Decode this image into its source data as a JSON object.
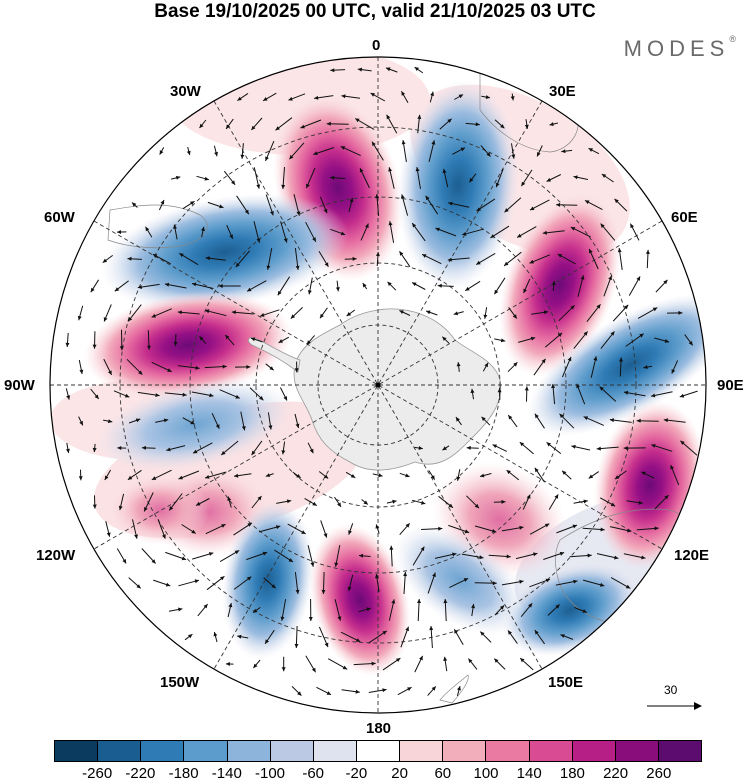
{
  "title": "Base 19/10/2025 00 UTC, valid 21/10/2025 03 UTC",
  "brand": "MODES",
  "brand_mark": "®",
  "longitude_labels": {
    "lon_0": "0",
    "lon_30e": "30E",
    "lon_60e": "60E",
    "lon_90e": "90E",
    "lon_120e": "120E",
    "lon_150e": "150E",
    "lon_180": "180",
    "lon_150w": "150W",
    "lon_120w": "120W",
    "lon_90w": "90W",
    "lon_60w": "60W",
    "lon_30w": "30W"
  },
  "reference_vector": {
    "value": "30"
  },
  "colorbar": {
    "ticks": [
      "-260",
      "-220",
      "-180",
      "-140",
      "-100",
      "-60",
      "-20",
      "20",
      "60",
      "100",
      "140",
      "180",
      "220",
      "260"
    ],
    "colors": [
      "#0b3b5e",
      "#1a5d90",
      "#2f7bb5",
      "#5b9ccc",
      "#8db5db",
      "#bcc9e4",
      "#dfe2ef",
      "#ffffff",
      "#f7d5d8",
      "#f2aebb",
      "#ea7aa2",
      "#d94c93",
      "#b51f86",
      "#8a0d7c",
      "#5c0b6e"
    ]
  },
  "map_data": {
    "projection": "south-polar-stereographic",
    "anomalies": [
      {
        "id": "a1",
        "sign": "+",
        "value": 240
      },
      {
        "id": "a2",
        "sign": "-",
        "value": -200
      },
      {
        "id": "a3",
        "sign": "+",
        "value": 240
      },
      {
        "id": "a4",
        "sign": "-",
        "value": -180
      },
      {
        "id": "a5",
        "sign": "+",
        "value": 260
      },
      {
        "id": "a6",
        "sign": "-",
        "value": -140
      },
      {
        "id": "a7",
        "sign": "+",
        "value": 140
      },
      {
        "id": "a8",
        "sign": "-",
        "value": -200
      },
      {
        "id": "a9",
        "sign": "+",
        "value": 220
      },
      {
        "id": "a10",
        "sign": "-",
        "value": -100
      },
      {
        "id": "a11",
        "sign": "+",
        "value": 120
      },
      {
        "id": "a12",
        "sign": "-",
        "value": -160
      },
      {
        "id": "a13",
        "sign": "+",
        "value": 160
      }
    ]
  }
}
